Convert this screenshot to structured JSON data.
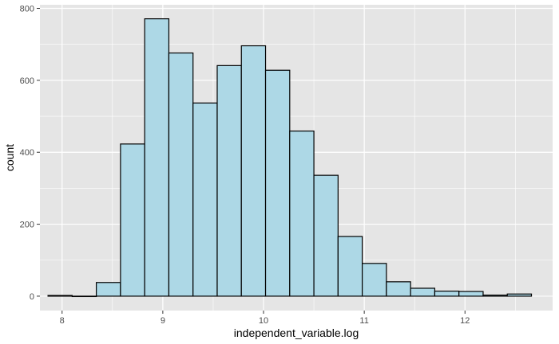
{
  "chart_data": {
    "type": "bar",
    "subtype": "histogram",
    "xlabel": "independent_variable.log",
    "ylabel": "count",
    "xlim": [
      7.78,
      12.87
    ],
    "ylim": [
      -40,
      810
    ],
    "x_ticks": [
      8,
      9,
      10,
      11,
      12
    ],
    "y_ticks": [
      0,
      200,
      400,
      600,
      800
    ],
    "grid": true,
    "bins": [
      {
        "x0": 7.86,
        "x1": 8.1,
        "count": 2
      },
      {
        "x0": 8.1,
        "x1": 8.34,
        "count": 0
      },
      {
        "x0": 8.34,
        "x1": 8.58,
        "count": 38
      },
      {
        "x0": 8.58,
        "x1": 8.82,
        "count": 423
      },
      {
        "x0": 8.82,
        "x1": 9.06,
        "count": 771
      },
      {
        "x0": 9.06,
        "x1": 9.3,
        "count": 676
      },
      {
        "x0": 9.3,
        "x1": 9.54,
        "count": 537
      },
      {
        "x0": 9.54,
        "x1": 9.78,
        "count": 641
      },
      {
        "x0": 9.78,
        "x1": 10.02,
        "count": 696
      },
      {
        "x0": 10.02,
        "x1": 10.26,
        "count": 628
      },
      {
        "x0": 10.26,
        "x1": 10.5,
        "count": 459
      },
      {
        "x0": 10.5,
        "x1": 10.74,
        "count": 336
      },
      {
        "x0": 10.74,
        "x1": 10.98,
        "count": 166
      },
      {
        "x0": 10.98,
        "x1": 11.22,
        "count": 91
      },
      {
        "x0": 11.22,
        "x1": 11.46,
        "count": 40
      },
      {
        "x0": 11.46,
        "x1": 11.7,
        "count": 22
      },
      {
        "x0": 11.7,
        "x1": 11.94,
        "count": 14
      },
      {
        "x0": 11.94,
        "x1": 12.18,
        "count": 13
      },
      {
        "x0": 12.18,
        "x1": 12.42,
        "count": 3
      },
      {
        "x0": 12.42,
        "x1": 12.66,
        "count": 6
      }
    ]
  },
  "colors": {
    "panel_bg": "#e5e5e5",
    "grid_major": "#ffffff",
    "bar_fill": "#add8e6",
    "bar_stroke": "#000000"
  }
}
